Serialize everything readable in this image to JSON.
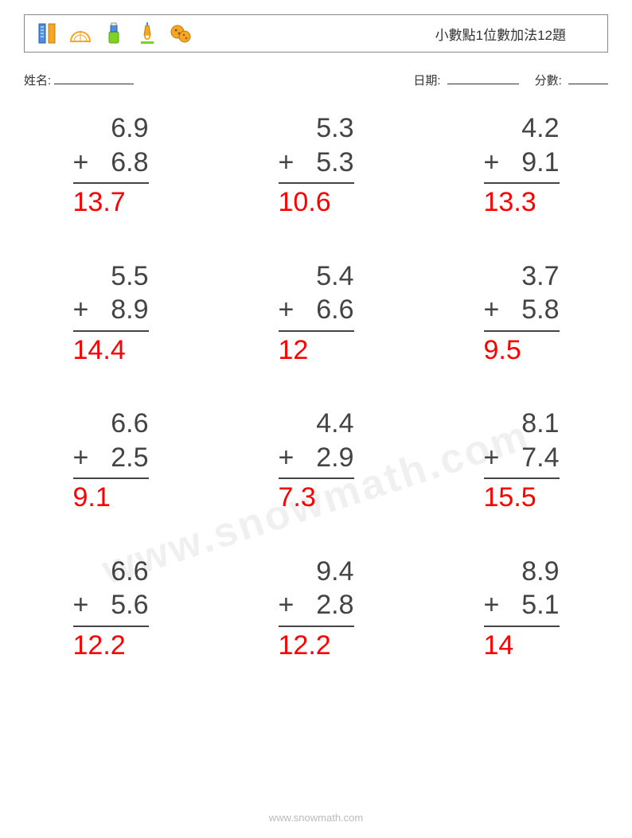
{
  "title": "小數點1位數加法12題",
  "labels": {
    "name": "姓名:",
    "date": "日期:",
    "score": "分數:"
  },
  "colors": {
    "text": "#444444",
    "answer": "#ff0000",
    "border": "#888888",
    "footer": "#bbbbbb",
    "background": "#ffffff"
  },
  "typography": {
    "problem_fontsize": 34,
    "title_fontsize": 17,
    "label_fontsize": 15,
    "footer_fontsize": 13
  },
  "layout": {
    "columns": 3,
    "rows": 4,
    "problem_width": 95
  },
  "icons": [
    {
      "name": "rulers-icon",
      "colors": [
        "#f5a623",
        "#4a90e2"
      ]
    },
    {
      "name": "protractor-icon",
      "colors": [
        "#f5a623"
      ]
    },
    {
      "name": "glue-icon",
      "colors": [
        "#7ed321",
        "#4a90e2"
      ]
    },
    {
      "name": "microscope-icon",
      "colors": [
        "#f5a623",
        "#7ed321"
      ]
    },
    {
      "name": "cookies-icon",
      "colors": [
        "#f5a623",
        "#8b572a"
      ]
    }
  ],
  "operator": "+",
  "problems": [
    {
      "a": "6.9",
      "b": "6.8",
      "answer": "13.7"
    },
    {
      "a": "5.3",
      "b": "5.3",
      "answer": "10.6"
    },
    {
      "a": "4.2",
      "b": "9.1",
      "answer": "13.3"
    },
    {
      "a": "5.5",
      "b": "8.9",
      "answer": "14.4"
    },
    {
      "a": "5.4",
      "b": "6.6",
      "answer": "12"
    },
    {
      "a": "3.7",
      "b": "5.8",
      "answer": "9.5"
    },
    {
      "a": "6.6",
      "b": "2.5",
      "answer": "9.1"
    },
    {
      "a": "4.4",
      "b": "2.9",
      "answer": "7.3"
    },
    {
      "a": "8.1",
      "b": "7.4",
      "answer": "15.5"
    },
    {
      "a": "6.6",
      "b": "5.6",
      "answer": "12.2"
    },
    {
      "a": "9.4",
      "b": "2.8",
      "answer": "12.2"
    },
    {
      "a": "8.9",
      "b": "5.1",
      "answer": "14"
    }
  ],
  "footer": "www.snowmath.com",
  "watermark": "www.snowmath.com"
}
